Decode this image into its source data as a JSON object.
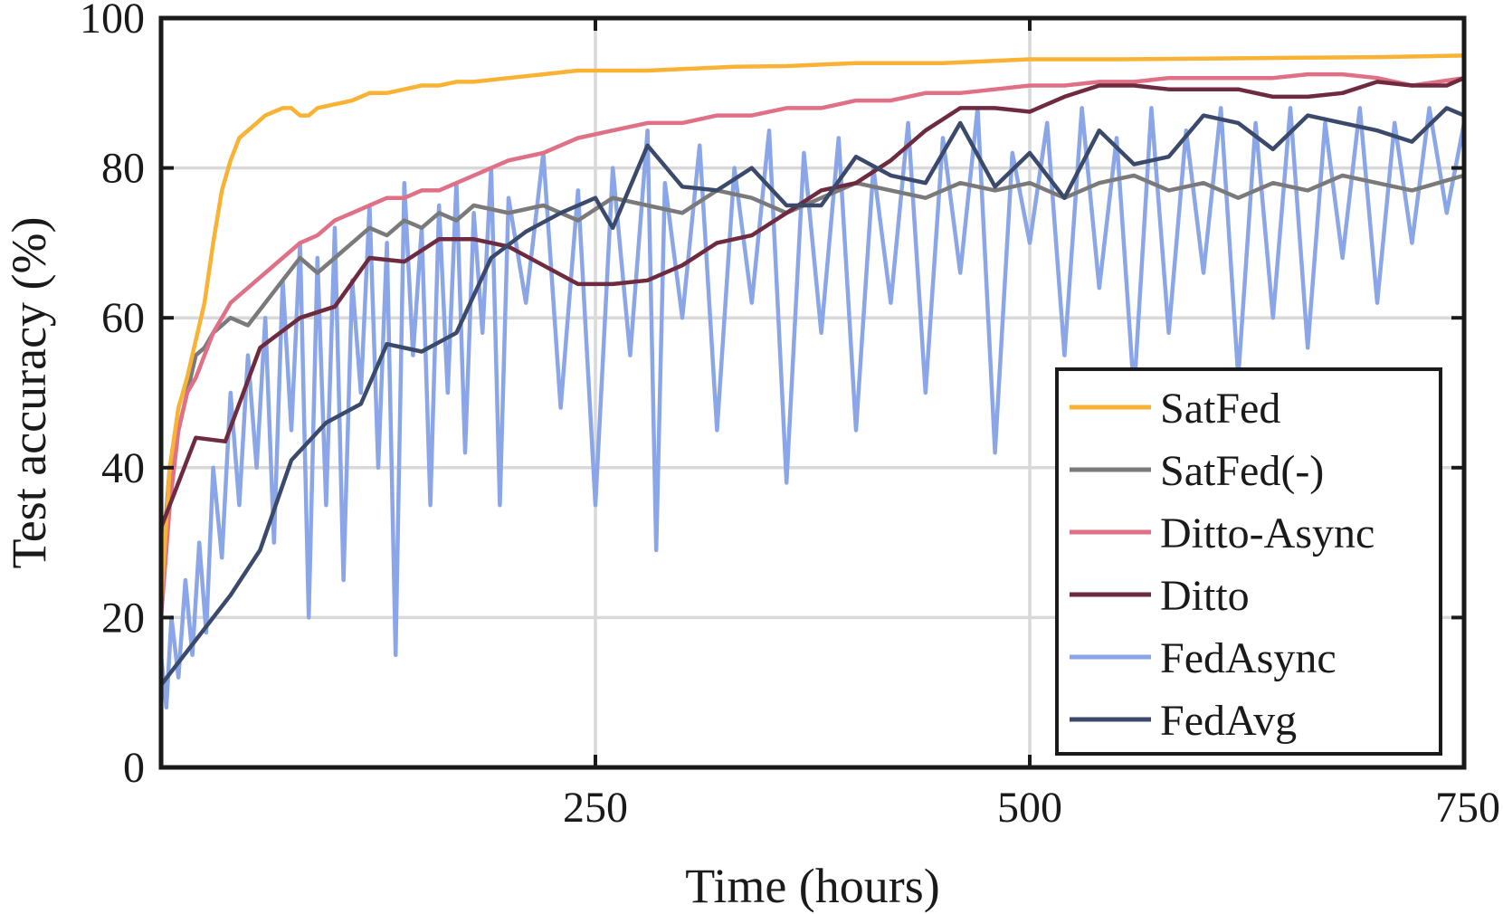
{
  "chart_data": {
    "type": "line",
    "title": "",
    "xlabel": "Time (hours)",
    "ylabel": "Test accuracy (%)",
    "xlim": [
      0,
      750
    ],
    "ylim": [
      0,
      100
    ],
    "xticks": [
      250,
      500,
      750
    ],
    "xtick_labels": [
      "250",
      "500",
      "750"
    ],
    "yticks": [
      0,
      20,
      40,
      60,
      80,
      100
    ],
    "ytick_labels": [
      "0",
      "20",
      "40",
      "60",
      "80",
      "100"
    ],
    "grid": true,
    "legend_position": "bottom-right",
    "series": [
      {
        "name": "SatFed",
        "color": "#F9B233",
        "points": [
          [
            0,
            22
          ],
          [
            5,
            40
          ],
          [
            10,
            48
          ],
          [
            15,
            52
          ],
          [
            20,
            57
          ],
          [
            25,
            62
          ],
          [
            30,
            70
          ],
          [
            35,
            77
          ],
          [
            40,
            81
          ],
          [
            45,
            84
          ],
          [
            50,
            85
          ],
          [
            55,
            86
          ],
          [
            60,
            87
          ],
          [
            65,
            87.5
          ],
          [
            70,
            88
          ],
          [
            75,
            88
          ],
          [
            80,
            87
          ],
          [
            85,
            87
          ],
          [
            90,
            88
          ],
          [
            100,
            88.5
          ],
          [
            110,
            89
          ],
          [
            120,
            90
          ],
          [
            130,
            90
          ],
          [
            140,
            90.5
          ],
          [
            150,
            91
          ],
          [
            160,
            91
          ],
          [
            170,
            91.5
          ],
          [
            180,
            91.5
          ],
          [
            200,
            92
          ],
          [
            220,
            92.5
          ],
          [
            240,
            93
          ],
          [
            260,
            93
          ],
          [
            280,
            93
          ],
          [
            300,
            93.2
          ],
          [
            330,
            93.5
          ],
          [
            360,
            93.6
          ],
          [
            400,
            94
          ],
          [
            450,
            94
          ],
          [
            500,
            94.5
          ],
          [
            550,
            94.5
          ],
          [
            600,
            94.6
          ],
          [
            650,
            94.7
          ],
          [
            700,
            94.8
          ],
          [
            750,
            95
          ]
        ]
      },
      {
        "name": "SatFed(-)",
        "color": "#7A7A7A",
        "points": [
          [
            0,
            25
          ],
          [
            5,
            40
          ],
          [
            10,
            45
          ],
          [
            15,
            50
          ],
          [
            20,
            55
          ],
          [
            25,
            56
          ],
          [
            30,
            58
          ],
          [
            40,
            60
          ],
          [
            50,
            59
          ],
          [
            60,
            62
          ],
          [
            70,
            65
          ],
          [
            80,
            68
          ],
          [
            90,
            66
          ],
          [
            100,
            68
          ],
          [
            110,
            70
          ],
          [
            120,
            72
          ],
          [
            130,
            71
          ],
          [
            140,
            73
          ],
          [
            150,
            72
          ],
          [
            160,
            74
          ],
          [
            170,
            73
          ],
          [
            180,
            75
          ],
          [
            200,
            74
          ],
          [
            220,
            75
          ],
          [
            240,
            73
          ],
          [
            260,
            76
          ],
          [
            280,
            75
          ],
          [
            300,
            74
          ],
          [
            320,
            77
          ],
          [
            340,
            76
          ],
          [
            360,
            74
          ],
          [
            380,
            76
          ],
          [
            400,
            78
          ],
          [
            420,
            77
          ],
          [
            440,
            76
          ],
          [
            460,
            78
          ],
          [
            480,
            77
          ],
          [
            500,
            78
          ],
          [
            520,
            76
          ],
          [
            540,
            78
          ],
          [
            560,
            79
          ],
          [
            580,
            77
          ],
          [
            600,
            78
          ],
          [
            620,
            76
          ],
          [
            640,
            78
          ],
          [
            660,
            77
          ],
          [
            680,
            79
          ],
          [
            700,
            78
          ],
          [
            720,
            77
          ],
          [
            750,
            79
          ]
        ]
      },
      {
        "name": "Ditto-Async",
        "color": "#E07085",
        "points": [
          [
            0,
            20
          ],
          [
            5,
            35
          ],
          [
            10,
            45
          ],
          [
            15,
            50
          ],
          [
            20,
            52
          ],
          [
            25,
            55
          ],
          [
            30,
            58
          ],
          [
            40,
            62
          ],
          [
            50,
            64
          ],
          [
            60,
            66
          ],
          [
            70,
            68
          ],
          [
            80,
            70
          ],
          [
            90,
            71
          ],
          [
            100,
            73
          ],
          [
            110,
            74
          ],
          [
            120,
            75
          ],
          [
            130,
            76
          ],
          [
            140,
            76
          ],
          [
            150,
            77
          ],
          [
            160,
            77
          ],
          [
            170,
            78
          ],
          [
            180,
            79
          ],
          [
            200,
            81
          ],
          [
            220,
            82
          ],
          [
            240,
            84
          ],
          [
            260,
            85
          ],
          [
            280,
            86
          ],
          [
            300,
            86
          ],
          [
            320,
            87
          ],
          [
            340,
            87
          ],
          [
            360,
            88
          ],
          [
            380,
            88
          ],
          [
            400,
            89
          ],
          [
            420,
            89
          ],
          [
            440,
            90
          ],
          [
            460,
            90
          ],
          [
            480,
            90.5
          ],
          [
            500,
            91
          ],
          [
            520,
            91
          ],
          [
            540,
            91.5
          ],
          [
            560,
            91.5
          ],
          [
            580,
            92
          ],
          [
            600,
            92
          ],
          [
            620,
            92
          ],
          [
            640,
            92
          ],
          [
            660,
            92.5
          ],
          [
            680,
            92.5
          ],
          [
            700,
            92
          ],
          [
            720,
            91
          ],
          [
            750,
            92
          ]
        ]
      },
      {
        "name": "Ditto",
        "color": "#6E2A3E",
        "points": [
          [
            0,
            32
          ],
          [
            20,
            44
          ],
          [
            37,
            43.5
          ],
          [
            57,
            56
          ],
          [
            80,
            60
          ],
          [
            100,
            61.5
          ],
          [
            120,
            68
          ],
          [
            140,
            67.5
          ],
          [
            160,
            70.5
          ],
          [
            180,
            70.5
          ],
          [
            200,
            69.5
          ],
          [
            220,
            67
          ],
          [
            240,
            64.5
          ],
          [
            260,
            64.5
          ],
          [
            280,
            65
          ],
          [
            300,
            67
          ],
          [
            320,
            70
          ],
          [
            340,
            71
          ],
          [
            360,
            74
          ],
          [
            380,
            77
          ],
          [
            400,
            78
          ],
          [
            420,
            81
          ],
          [
            440,
            85
          ],
          [
            460,
            88
          ],
          [
            480,
            88
          ],
          [
            500,
            87.5
          ],
          [
            520,
            89.5
          ],
          [
            540,
            91
          ],
          [
            560,
            91
          ],
          [
            580,
            90.5
          ],
          [
            600,
            90.5
          ],
          [
            620,
            90.5
          ],
          [
            640,
            89.5
          ],
          [
            660,
            89.5
          ],
          [
            680,
            90
          ],
          [
            700,
            91.5
          ],
          [
            720,
            91
          ],
          [
            740,
            91
          ],
          [
            750,
            92
          ]
        ]
      },
      {
        "name": "FedAsync",
        "color": "#8AA6E8",
        "points": [
          [
            0,
            15
          ],
          [
            3,
            8
          ],
          [
            6,
            20
          ],
          [
            10,
            12
          ],
          [
            14,
            25
          ],
          [
            18,
            15
          ],
          [
            22,
            30
          ],
          [
            26,
            18
          ],
          [
            30,
            40
          ],
          [
            35,
            28
          ],
          [
            40,
            50
          ],
          [
            45,
            35
          ],
          [
            50,
            55
          ],
          [
            55,
            40
          ],
          [
            60,
            60
          ],
          [
            65,
            30
          ],
          [
            70,
            65
          ],
          [
            75,
            45
          ],
          [
            80,
            70
          ],
          [
            85,
            20
          ],
          [
            90,
            68
          ],
          [
            95,
            35
          ],
          [
            100,
            72
          ],
          [
            105,
            25
          ],
          [
            110,
            65
          ],
          [
            115,
            50
          ],
          [
            120,
            75
          ],
          [
            125,
            40
          ],
          [
            130,
            70
          ],
          [
            135,
            15
          ],
          [
            140,
            78
          ],
          [
            145,
            55
          ],
          [
            150,
            72
          ],
          [
            155,
            35
          ],
          [
            160,
            75
          ],
          [
            165,
            50
          ],
          [
            170,
            78
          ],
          [
            175,
            42
          ],
          [
            180,
            74
          ],
          [
            185,
            58
          ],
          [
            190,
            80
          ],
          [
            195,
            35
          ],
          [
            200,
            76
          ],
          [
            210,
            62
          ],
          [
            220,
            82
          ],
          [
            230,
            48
          ],
          [
            240,
            77
          ],
          [
            250,
            35
          ],
          [
            260,
            80
          ],
          [
            270,
            55
          ],
          [
            280,
            85
          ],
          [
            285,
            29
          ],
          [
            290,
            78
          ],
          [
            300,
            60
          ],
          [
            310,
            83
          ],
          [
            320,
            45
          ],
          [
            330,
            80
          ],
          [
            340,
            62
          ],
          [
            350,
            85
          ],
          [
            360,
            38
          ],
          [
            370,
            82
          ],
          [
            380,
            58
          ],
          [
            390,
            84
          ],
          [
            400,
            45
          ],
          [
            410,
            80
          ],
          [
            420,
            62
          ],
          [
            430,
            86
          ],
          [
            440,
            50
          ],
          [
            450,
            84
          ],
          [
            460,
            66
          ],
          [
            470,
            88
          ],
          [
            480,
            42
          ],
          [
            490,
            82
          ],
          [
            500,
            70
          ],
          [
            510,
            86
          ],
          [
            520,
            55
          ],
          [
            530,
            88
          ],
          [
            540,
            64
          ],
          [
            550,
            84
          ],
          [
            560,
            50
          ],
          [
            570,
            88
          ],
          [
            580,
            58
          ],
          [
            590,
            85
          ],
          [
            600,
            66
          ],
          [
            610,
            88
          ],
          [
            620,
            52
          ],
          [
            630,
            86
          ],
          [
            640,
            60
          ],
          [
            650,
            88
          ],
          [
            660,
            56
          ],
          [
            670,
            86
          ],
          [
            680,
            68
          ],
          [
            690,
            88
          ],
          [
            700,
            62
          ],
          [
            710,
            86
          ],
          [
            720,
            70
          ],
          [
            730,
            88
          ],
          [
            740,
            74
          ],
          [
            750,
            86
          ]
        ]
      },
      {
        "name": "FedAvg",
        "color": "#3B4A6B",
        "points": [
          [
            0,
            11
          ],
          [
            20,
            17
          ],
          [
            40,
            23
          ],
          [
            57,
            29
          ],
          [
            75,
            41
          ],
          [
            95,
            46
          ],
          [
            115,
            48.5
          ],
          [
            130,
            56.5
          ],
          [
            150,
            55.5
          ],
          [
            170,
            58
          ],
          [
            190,
            68
          ],
          [
            210,
            71.5
          ],
          [
            230,
            74
          ],
          [
            250,
            76
          ],
          [
            260,
            72
          ],
          [
            280,
            83
          ],
          [
            300,
            77.5
          ],
          [
            320,
            77
          ],
          [
            340,
            80
          ],
          [
            360,
            75
          ],
          [
            380,
            75
          ],
          [
            400,
            81.5
          ],
          [
            420,
            79
          ],
          [
            440,
            78
          ],
          [
            460,
            86
          ],
          [
            480,
            77.5
          ],
          [
            500,
            82
          ],
          [
            520,
            76
          ],
          [
            540,
            85
          ],
          [
            560,
            80.5
          ],
          [
            580,
            81.5
          ],
          [
            600,
            87
          ],
          [
            620,
            86
          ],
          [
            640,
            82.5
          ],
          [
            660,
            87
          ],
          [
            680,
            86
          ],
          [
            700,
            85
          ],
          [
            720,
            83.5
          ],
          [
            740,
            88
          ],
          [
            750,
            87
          ]
        ]
      }
    ]
  }
}
